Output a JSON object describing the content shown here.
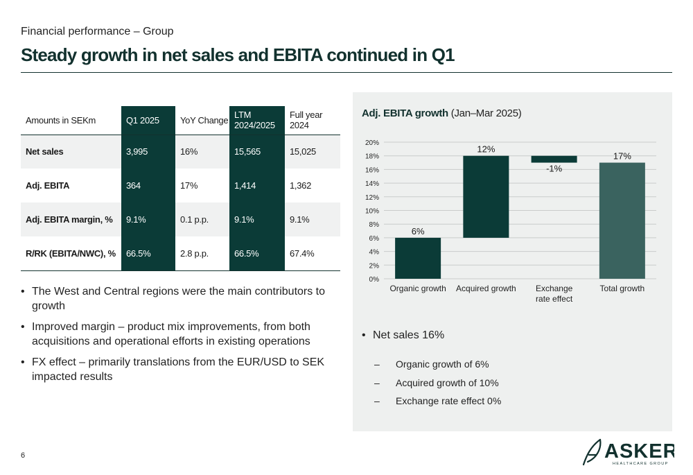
{
  "header": {
    "subtitle": "Financial performance – Group",
    "title": "Steady growth in net sales and EBITA continued in Q1"
  },
  "table": {
    "columns": [
      "Amounts in SEKm",
      "Q1 2025",
      "YoY Change",
      "LTM 2024/2025",
      "Full year 2024"
    ],
    "rows": [
      {
        "label": "Net sales",
        "q1": "3,995",
        "yoy": "16%",
        "ltm": "15,565",
        "fy": "15,025"
      },
      {
        "label": "Adj. EBITA",
        "q1": "364",
        "yoy": "17%",
        "ltm": "1,414",
        "fy": "1,362"
      },
      {
        "label": "Adj. EBITA margin, %",
        "q1": "9.1%",
        "yoy": "0.1 p.p.",
        "ltm": "9.1%",
        "fy": "9.1%"
      },
      {
        "label": "R/RK (EBITA/NWC), %",
        "q1": "66.5%",
        "yoy": "2.8 p.p.",
        "ltm": "66.5%",
        "fy": "67.4%"
      }
    ]
  },
  "bullets_left": [
    "The West and Central regions were the main contributors to growth",
    "Improved margin – product mix improvements, from both acquisitions and operational efforts in existing operations",
    "FX effect – primarily translations from the EUR/USD to SEK impacted results"
  ],
  "chart_data": {
    "type": "bar",
    "title": "Adj. EBITA growth",
    "subtitle": "(Jan–Mar 2025)",
    "categories": [
      "Organic growth",
      "Acquired growth",
      "Exchange rate effect",
      "Total growth"
    ],
    "category_lines": [
      [
        "Organic growth"
      ],
      [
        "Acquired growth"
      ],
      [
        "Exchange",
        "rate effect"
      ],
      [
        "Total growth"
      ]
    ],
    "values": [
      6,
      12,
      -1,
      17
    ],
    "bar_start": [
      0,
      6,
      18,
      0
    ],
    "bar_end": [
      6,
      18,
      17,
      17
    ],
    "data_labels": [
      "6%",
      "12%",
      "-1%",
      "17%"
    ],
    "colors": [
      "#0b3b37",
      "#0b3b37",
      "#0b3b37",
      "#3a635f"
    ],
    "ylim": [
      0,
      20
    ],
    "yticks": [
      0,
      2,
      4,
      6,
      8,
      10,
      12,
      14,
      16,
      18,
      20
    ],
    "ytick_labels": [
      "0%",
      "2%",
      "4%",
      "6%",
      "8%",
      "10%",
      "12%",
      "14%",
      "16%",
      "18%",
      "20%"
    ],
    "grid": true,
    "legend": "none"
  },
  "net_sales": {
    "headline": "Net sales 16%",
    "items": [
      "Organic growth of 6%",
      "Acquired growth of 10%",
      "Exchange rate effect 0%"
    ]
  },
  "footer": {
    "page_number": "6",
    "logo_text": "ASKER",
    "logo_subtext": "HEALTHCARE GROUP"
  },
  "colors": {
    "accent_dark": "#0b3b37",
    "accent_mid": "#3a635f",
    "panel_bg": "#eef0ef"
  }
}
